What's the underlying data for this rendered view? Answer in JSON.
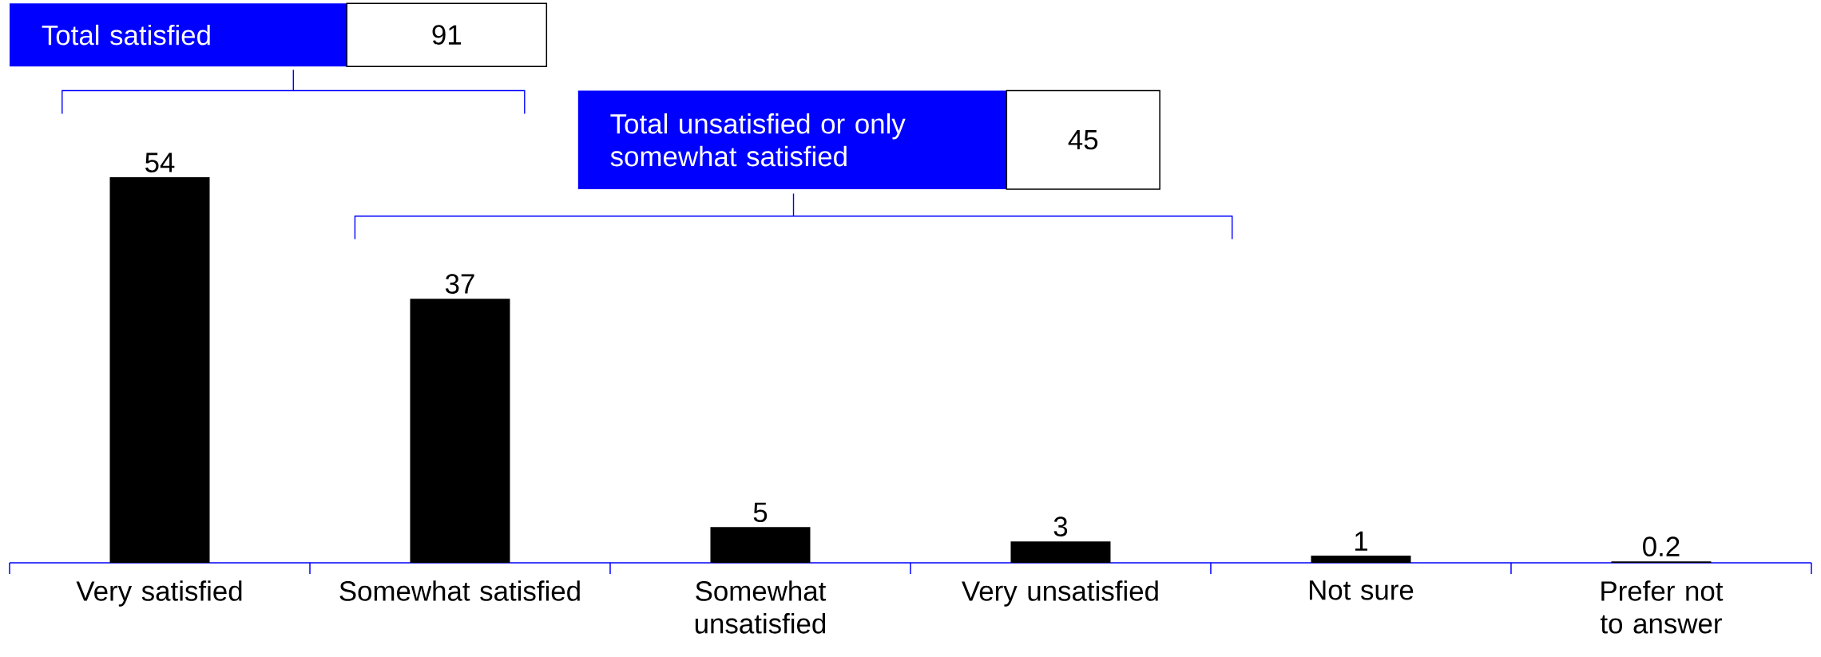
{
  "chart_data": {
    "type": "bar",
    "categories": [
      "Very satisfied",
      "Somewhat satisfied",
      "Somewhat unsatisfied",
      "Very unsatisfied",
      "Not sure",
      "Prefer not to answer"
    ],
    "values": [
      54,
      37,
      5,
      3,
      1,
      0.2
    ],
    "color": "#000000",
    "data_labels": true,
    "annotations": [
      "Total satisfied",
      "91",
      "Total unsatisfied or only somewhat satisfied",
      "45"
    ]
  }
}
